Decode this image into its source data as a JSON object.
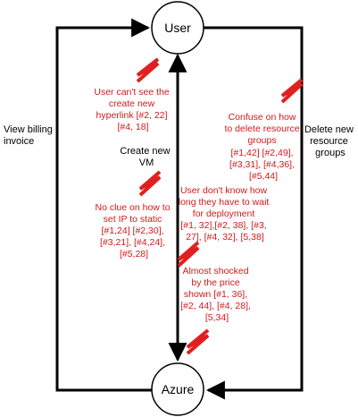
{
  "nodes": {
    "user": "User",
    "azure": "Azure"
  },
  "flows": {
    "view_billing": [
      "View billing",
      "invoice"
    ],
    "create_vm": [
      "Create new",
      "VM"
    ],
    "delete_groups": [
      "Delete new",
      "resource",
      "groups"
    ]
  },
  "pain_points": {
    "hyperlink": [
      "User can't see the",
      "create new",
      "hyperlink [#2, 22]",
      "[#4, 18]"
    ],
    "delete_confuse": [
      "Confuse on how",
      "to delete resource",
      "groups",
      "[#1,42] [#2,49],",
      "[#3,31], [#4,36],",
      "[#5,44]"
    ],
    "deploy_wait": [
      "User don't know how",
      "long they have to wait",
      "for deployment",
      "[#1, 32],[#2, 38], [#3,",
      "27], [#4, 32], [5,38]"
    ],
    "static_ip": [
      "No clue on how to",
      "set IP to static",
      "[#1,24] [#2,30],",
      "[#3,21], [#4,24],",
      "[#5,28]"
    ],
    "price_shock": [
      "Almost shocked",
      "by the price",
      "shown [#1, 36],",
      "[#2, 44], [#4, 28],",
      "[5,34]"
    ]
  },
  "colors": {
    "line": "#000000",
    "pain": "#d11a1a",
    "zigzag": "#e02020"
  }
}
